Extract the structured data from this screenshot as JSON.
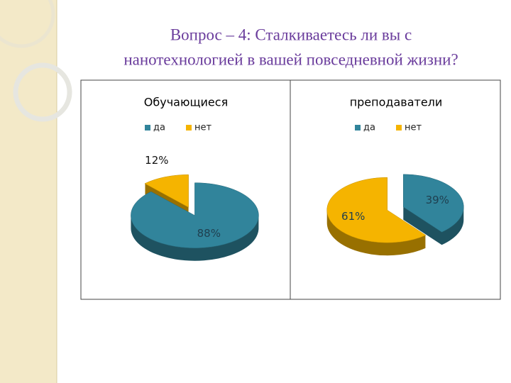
{
  "slide": {
    "title_lines": [
      "Вопрос – 4: Сталкиваетесь ли вы с",
      "нанотехнологией в вашей повседневной жизни?"
    ]
  },
  "chart_data": [
    {
      "type": "pie",
      "title": "Обучающиеся",
      "categories": [
        "да",
        "нет"
      ],
      "values": [
        88,
        12
      ],
      "value_labels": [
        "88%",
        "12%"
      ],
      "colors": [
        "#31849b",
        "#f5b400"
      ],
      "legend": "top"
    },
    {
      "type": "pie",
      "title": "преподаватели",
      "categories": [
        "да",
        "нет"
      ],
      "values": [
        39,
        61
      ],
      "value_labels": [
        "39%",
        "61%"
      ],
      "colors": [
        "#31849b",
        "#f5b400"
      ],
      "legend": "top"
    }
  ]
}
